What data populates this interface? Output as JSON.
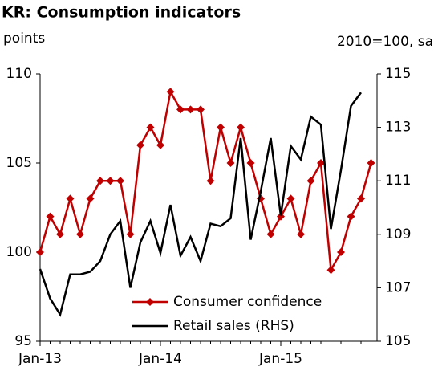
{
  "chart_data": {
    "type": "line",
    "title": "KR: Consumption indicators",
    "y_label": "points",
    "y2_label": "2010=100, sa",
    "categories": [
      "Jan-13",
      null,
      null,
      null,
      null,
      null,
      null,
      null,
      null,
      null,
      null,
      null,
      "Jan-14",
      null,
      null,
      null,
      null,
      null,
      null,
      null,
      null,
      null,
      null,
      null,
      "Jan-15",
      null,
      null,
      null,
      null,
      null,
      null,
      null,
      null,
      null
    ],
    "series": [
      {
        "name": "Consumer confidence",
        "color": "#c00000",
        "marker": "diamond",
        "values": [
          100,
          102,
          101,
          103,
          101,
          103,
          104,
          104,
          104,
          101,
          106,
          107,
          106,
          109,
          108,
          108,
          108,
          104,
          107,
          105,
          107,
          105,
          103,
          101,
          102,
          103,
          101,
          104,
          105,
          99,
          100,
          102,
          103,
          105
        ]
      },
      {
        "name": "Retail sales (RHS)",
        "color": "#000000",
        "axis": "y2",
        "values": [
          107.7,
          106.6,
          106,
          107.5,
          107.5,
          107.6,
          108,
          109,
          109.5,
          107,
          108.7,
          109.5,
          108.3,
          110.1,
          108.2,
          108.9,
          108,
          109.4,
          109.3,
          109.6,
          112.6,
          108.8,
          110.6,
          112.6,
          109.7,
          112.3,
          111.8,
          113.4,
          113.1,
          109.2,
          111.4,
          113.8,
          114.3,
          null
        ]
      }
    ],
    "ylim": [
      95,
      110
    ],
    "yticks": [
      95,
      100,
      105,
      110
    ],
    "y2lim": [
      105,
      115
    ],
    "y2ticks": [
      105,
      107,
      109,
      111,
      113,
      115
    ],
    "legend": "bottom-center",
    "grid": false
  }
}
